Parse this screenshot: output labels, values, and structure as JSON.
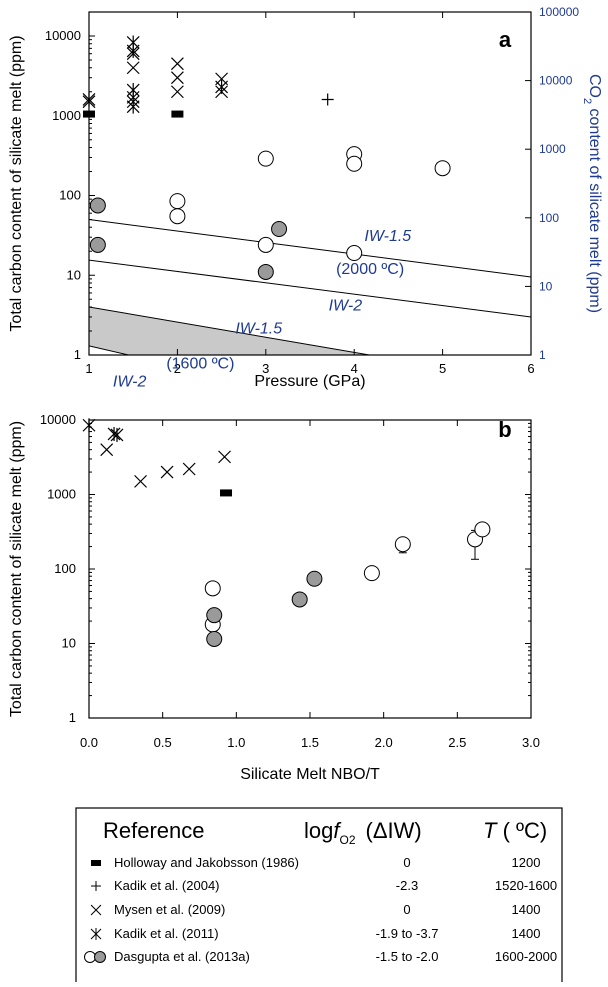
{
  "chart_data": [
    {
      "type": "scatter",
      "panel_letter": "a",
      "xlabel": "Pressure (GPa)",
      "ylabel": "Total carbon content of silicate melt (ppm)",
      "y2label": "CO2 content of silicate melt (ppm)",
      "xlim": [
        1,
        6
      ],
      "ylim": [
        1,
        20000
      ],
      "y_scale": "log",
      "y2lim": [
        1,
        100000
      ],
      "x_ticks": [
        "1",
        "2",
        "3",
        "4",
        "5",
        "6"
      ],
      "y_ticks": [
        "1",
        "10",
        "100",
        "1000",
        "10000"
      ],
      "y2_ticks": [
        "1",
        "10",
        "100",
        "1000",
        "10000",
        "100000"
      ],
      "series": [
        {
          "name": "Holloway and Jakobsson (1986)",
          "marker": "filled-rect",
          "points": [
            [
              1.0,
              1050
            ],
            [
              2.0,
              1050
            ]
          ]
        },
        {
          "name": "Kadik et al. (2004)",
          "marker": "plus",
          "points": [
            [
              3.7,
              1600
            ]
          ]
        },
        {
          "name": "Mysen et al. (2009)",
          "marker": "x",
          "points": [
            [
              1.0,
              1500
            ],
            [
              1.5,
              1500
            ],
            [
              1.5,
              4000
            ],
            [
              1.5,
              6000
            ],
            [
              2.0,
              2000
            ],
            [
              2.0,
              3000
            ],
            [
              2.0,
              4500
            ],
            [
              2.5,
              2000
            ],
            [
              2.5,
              2900
            ]
          ]
        },
        {
          "name": "Kadik et al. (2011)",
          "marker": "asterisk",
          "points": [
            [
              1.0,
              1600
            ],
            [
              1.5,
              1300
            ],
            [
              1.5,
              1700
            ],
            [
              1.5,
              2100
            ],
            [
              1.5,
              6500
            ],
            [
              1.5,
              8300
            ],
            [
              2.5,
              2300
            ]
          ]
        },
        {
          "name": "Dasgupta et al. (2013a) open",
          "marker": "open-circle",
          "points": [
            [
              2.0,
              85
            ],
            [
              2.0,
              55
            ],
            [
              3.0,
              290
            ],
            [
              3.0,
              24
            ],
            [
              4.0,
              330
            ],
            [
              4.0,
              250
            ],
            [
              4.0,
              19
            ],
            [
              5.0,
              220
            ]
          ]
        },
        {
          "name": "Dasgupta et al. (2013a) filled",
          "marker": "gray-circle",
          "points": [
            [
              1.1,
              75
            ],
            [
              1.1,
              24
            ],
            [
              3.0,
              11
            ],
            [
              3.15,
              38
            ]
          ]
        }
      ],
      "curves": [
        {
          "label": "IW-1.5",
          "x": [
            1,
            6
          ],
          "y": [
            50,
            9.5
          ]
        },
        {
          "label": "IW-2",
          "x": [
            1,
            6
          ],
          "y": [
            15.5,
            3.0
          ]
        },
        {
          "label": "IW-1.5 (1600 °C) upper",
          "x": [
            1,
            6
          ],
          "y": [
            4.0,
            0.45
          ]
        },
        {
          "label": "IW-2 (1600 °C) lower",
          "x": [
            1,
            4.2
          ],
          "y": [
            1.3,
            0.2
          ]
        }
      ],
      "annotations": {
        "iw15_hi": "IW-1.5",
        "t_hi": "(2000 ºC)",
        "iw2_hi": "IW-2",
        "iw15_lo": "IW-1.5",
        "t_lo": "(1600 ºC)",
        "iw2_lo": "IW-2"
      }
    },
    {
      "type": "scatter",
      "panel_letter": "b",
      "xlabel": "Silicate Melt NBO/T",
      "ylabel": "Total carbon content of silicate melt (ppm)",
      "xlim": [
        0,
        3.0
      ],
      "ylim": [
        1,
        10000
      ],
      "y_scale": "log",
      "x_ticks": [
        "0.0",
        "0.5",
        "1.0",
        "1.5",
        "2.0",
        "2.5",
        "3.0"
      ],
      "y_ticks": [
        "1",
        "10",
        "100",
        "1000",
        "10000"
      ],
      "series": [
        {
          "name": "Holloway and Jakobsson (1986)",
          "marker": "filled-rect",
          "points": [
            [
              0.93,
              1050
            ]
          ]
        },
        {
          "name": "Mysen et al. (2009)",
          "marker": "x",
          "points": [
            [
              0.12,
              4000
            ],
            [
              0.35,
              1500
            ],
            [
              0.53,
              2000
            ],
            [
              0.68,
              2200
            ],
            [
              0.92,
              3200
            ]
          ]
        },
        {
          "name": "Kadik et al. (2011)",
          "marker": "asterisk",
          "points": [
            [
              0.0,
              8500
            ],
            [
              0.17,
              6500
            ],
            [
              0.19,
              6300
            ]
          ]
        },
        {
          "name": "Dasgupta et al. (2013a) open",
          "marker": "open-circle",
          "points": [
            [
              0.84,
              55
            ],
            [
              0.84,
              18
            ],
            [
              1.92,
              88
            ],
            [
              2.13,
              215
            ],
            [
              2.62,
              250
            ],
            [
              2.67,
              340
            ]
          ]
        },
        {
          "name": "Dasgupta et al. (2013a) filled",
          "marker": "gray-circle",
          "points": [
            [
              0.85,
              24
            ],
            [
              0.85,
              11.5
            ],
            [
              1.43,
              39
            ],
            [
              1.53,
              74
            ]
          ]
        }
      ],
      "error_bars": [
        {
          "x": 2.13,
          "y_low": 165,
          "y_high": 240
        },
        {
          "x": 2.62,
          "y_low": 135,
          "y_high": 330
        },
        {
          "x": 2.67,
          "y_low": 290,
          "y_high": 380
        }
      ]
    }
  ],
  "legend": {
    "head_reference": "Reference",
    "head_logfo2": "log",
    "head_f": "f",
    "head_o2": "O2",
    "head_diw": "(ΔIW)",
    "head_t": "T",
    "head_tunit": "( ºC)",
    "rows": [
      {
        "marker": "filled-rect",
        "reference": "Holloway and Jakobsson (1986)",
        "logfo2": "0",
        "t": "1200"
      },
      {
        "marker": "plus",
        "reference": "Kadik et al. (2004)",
        "logfo2": "-2.3",
        "t": "1520-1600"
      },
      {
        "marker": "x",
        "reference": "Mysen et al. (2009)",
        "logfo2": "0",
        "t": "1400"
      },
      {
        "marker": "asterisk",
        "reference": "Kadik et al. (2011)",
        "logfo2": "-1.9 to -3.7",
        "t": "1400"
      },
      {
        "marker": "circles",
        "reference": "Dasgupta et al. (2013a)",
        "logfo2": "-1.5 to -2.0",
        "t": "1600-2000"
      }
    ]
  },
  "colors": {
    "axis": "#000000",
    "accent_blue": "#1f3a93",
    "band_fill": "#c9c9c9",
    "gray_marker": "#9a9a9a"
  }
}
